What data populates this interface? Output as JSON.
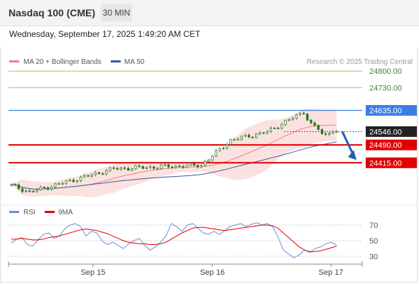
{
  "header": {
    "symbol": "Nasdaq 100 (CME)",
    "timeframe": "30 MIN",
    "datetime": "Wednesday, September 17, 2025 1:49:20 AM CET"
  },
  "colors": {
    "ma20": "#f08080",
    "bollinger_fill": "#fbd9d9",
    "ma50": "#3a5a99",
    "candle": "#1e7a1e",
    "resistance_green": "#8fce6a",
    "pivot_blue": "#3d7ee6",
    "support_red": "#e00000",
    "rsi": "#6a8fd8",
    "rsi_ma": "#e00000",
    "arrow": "#2060b0"
  },
  "chart_data": [
    {
      "type": "candlestick",
      "legend": [
        {
          "label": "MA 20 + Bollinger Bands",
          "color": "#f08080"
        },
        {
          "label": "MA 50",
          "color": "#3a5a99"
        }
      ],
      "watermark": "Research © 2025 Trading Central",
      "ylim": [
        24240,
        24860
      ],
      "x_tick_labels": [
        "Sep 15",
        "Sep 16",
        "Sep 17"
      ],
      "levels": [
        {
          "value": 24800.0,
          "label": "24800.00",
          "kind": "resistance"
        },
        {
          "value": 24730.0,
          "label": "24730.00",
          "kind": "resistance"
        },
        {
          "value": 24635.0,
          "label": "24635.00",
          "kind": "pivot"
        },
        {
          "value": 24546.0,
          "label": "24546.00",
          "kind": "last"
        },
        {
          "value": 24490.0,
          "label": "24490.00",
          "kind": "support"
        },
        {
          "value": 24415.0,
          "label": "24415.00",
          "kind": "support"
        }
      ],
      "key_points": [
        {
          "position": "start",
          "value": 24320
        },
        {
          "position": "Sep 15 low",
          "value": 24292
        },
        {
          "position": "Sep 15 mid",
          "value": 24390
        },
        {
          "position": "Sep 15 late",
          "value": 24405
        },
        {
          "position": "Sep 16 gap-up",
          "value": 24510
        },
        {
          "position": "Sep 16 mid",
          "value": 24545
        },
        {
          "position": "Sep 16 high",
          "value": 24637
        },
        {
          "position": "last",
          "value": 24546
        }
      ],
      "forecast_arrow": {
        "from": 24546,
        "to": 24415
      }
    },
    {
      "type": "line",
      "legend": [
        {
          "label": "RSI",
          "color": "#6a8fd8"
        },
        {
          "label": "9MA",
          "color": "#e00000"
        }
      ],
      "ylim": [
        20,
        80
      ],
      "y_ticks": [
        70,
        50,
        30
      ],
      "y_tick_labels": [
        "70",
        "50",
        "30"
      ],
      "series": [
        {
          "name": "RSI",
          "values": [
            47,
            52,
            54,
            45,
            43,
            51,
            58,
            60,
            53,
            56,
            65,
            70,
            72,
            68,
            56,
            62,
            60,
            50,
            45,
            48,
            44,
            40,
            46,
            50,
            53,
            44,
            38,
            42,
            48,
            56,
            72,
            68,
            62,
            70,
            72,
            66,
            60,
            58,
            62,
            58,
            63,
            68,
            70,
            72,
            68,
            71,
            73,
            70,
            72,
            68,
            55,
            38,
            33,
            28,
            32,
            38,
            35,
            40,
            42,
            46,
            48,
            44
          ]
        },
        {
          "name": "9MA",
          "values": [
            52,
            52,
            53,
            52,
            51,
            51,
            52,
            54,
            55,
            56,
            58,
            60,
            62,
            64,
            65,
            64,
            63,
            61,
            59,
            56,
            53,
            50,
            48,
            47,
            46,
            46,
            45,
            45,
            46,
            48,
            52,
            56,
            60,
            63,
            66,
            67,
            67,
            66,
            65,
            64,
            63,
            64,
            65,
            66,
            67,
            68,
            69,
            70,
            70,
            69,
            66,
            60,
            54,
            48,
            42,
            38,
            36,
            36,
            37,
            39,
            41,
            43
          ]
        }
      ]
    }
  ]
}
